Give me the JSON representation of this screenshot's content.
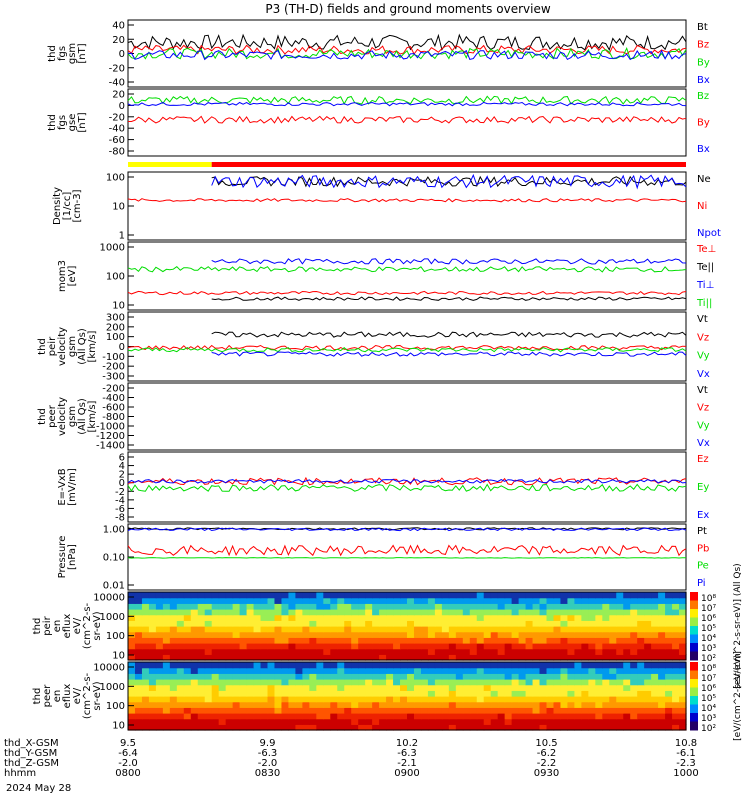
{
  "title": "P3 (TH-D) fields and ground moments overview",
  "date_text": "2024 May 28",
  "time_axis": {
    "row_labels": [
      "thd_X-GSM",
      "thd_Y-GSM",
      "thd_Z-GSM",
      "hhmm"
    ],
    "columns": [
      {
        "values": [
          "9.5",
          "-6.4",
          "-2.0",
          "0800"
        ]
      },
      {
        "values": [
          "9.9",
          "-6.3",
          "-2.0",
          "0830"
        ]
      },
      {
        "values": [
          "10.2",
          "-6.3",
          "-2.1",
          "0900"
        ]
      },
      {
        "values": [
          "10.5",
          "-6.2",
          "-2.2",
          "0930"
        ]
      },
      {
        "values": [
          "10.8",
          "-6.1",
          "-2.3",
          "1000"
        ]
      }
    ]
  },
  "colors": {
    "black": "#000000",
    "red": "#ff0000",
    "green": "#00dd00",
    "blue": "#0000ff",
    "yellow": "#ffff00"
  },
  "chart_data": [
    {
      "type": "line",
      "ylabel": [
        "thd",
        "fgs",
        "gsm",
        "[nT]"
      ],
      "yticks": [
        "40",
        "20",
        "0",
        "-20",
        "-40"
      ],
      "ylim": [
        -45,
        45
      ],
      "legend": [
        "Bt",
        "Bz",
        "By",
        "Bx"
      ],
      "series": [
        {
          "name": "Bt",
          "color": "black",
          "level": 15,
          "noise": 10
        },
        {
          "name": "Bz",
          "color": "red",
          "level": 5,
          "noise": 6
        },
        {
          "name": "By",
          "color": "green",
          "level": 0,
          "noise": 7
        },
        {
          "name": "Bx",
          "color": "blue",
          "level": -2,
          "noise": 6
        }
      ]
    },
    {
      "type": "line",
      "ylabel": [
        "thd",
        "fgs",
        "gse",
        "[nT]"
      ],
      "yticks": [
        "20",
        "0",
        "-20",
        "-40",
        "-60",
        "-80"
      ],
      "ylim": [
        -95,
        25
      ],
      "legend": [
        "Bz",
        "By",
        "Bx"
      ],
      "series": [
        {
          "name": "Bz",
          "color": "green",
          "level": 5,
          "noise": 7
        },
        {
          "name": "By",
          "color": "red",
          "level": -30,
          "noise": 6
        },
        {
          "name": "Bx",
          "color": "blue",
          "level": -2,
          "noise": 3
        }
      ]
    },
    {
      "type": "line",
      "ylabel": [
        "Density",
        "[1/cc]",
        "[cm-3]"
      ],
      "yticks": [
        "100",
        "10",
        "1"
      ],
      "ylim": [
        0.8,
        120
      ],
      "log": true,
      "legend": [
        "Ne",
        "Ni",
        "Npot"
      ],
      "series": [
        {
          "name": "Ne",
          "color": "black",
          "level": 60,
          "noise": 0.15
        },
        {
          "name": "Ni",
          "color": "red",
          "level": 15,
          "noise": 0.05
        },
        {
          "name": "Npot",
          "color": "blue",
          "level": 60,
          "noise": 0.2
        }
      ]
    },
    {
      "type": "line",
      "ylabel": [
        "mom3",
        "[eV]"
      ],
      "yticks": [
        "1000",
        "100",
        "10"
      ],
      "ylim": [
        9,
        1100
      ],
      "log": true,
      "legend": [
        "Te⊥",
        "Te||",
        "Ti⊥",
        "Ti||"
      ],
      "series": [
        {
          "name": "Te⊥",
          "color": "red",
          "level": 30,
          "noise": 0.05
        },
        {
          "name": "Te||",
          "color": "black",
          "level": 20,
          "noise": 0.05
        },
        {
          "name": "Ti⊥",
          "color": "blue",
          "level": 280,
          "noise": 0.08
        },
        {
          "name": "Ti||",
          "color": "green",
          "level": 160,
          "noise": 0.08
        }
      ]
    },
    {
      "type": "line",
      "ylabel": [
        "thd",
        "peir",
        "velocity",
        "gsm",
        "(All Qs)",
        "[km/s]"
      ],
      "yticks": [
        "300",
        "200",
        "100",
        "0",
        "-100",
        "-200",
        "-300"
      ],
      "ylim": [
        -320,
        320
      ],
      "legend": [
        "Vt",
        "Vz",
        "Vy",
        "Vx"
      ],
      "series": [
        {
          "name": "Vt",
          "color": "black",
          "level": 110,
          "noise": 25
        },
        {
          "name": "Vz",
          "color": "red",
          "level": -10,
          "noise": 20
        },
        {
          "name": "Vy",
          "color": "green",
          "level": -30,
          "noise": 20
        },
        {
          "name": "Vx",
          "color": "blue",
          "level": -70,
          "noise": 20
        }
      ]
    },
    {
      "type": "line",
      "ylabel": [
        "thd",
        "peer",
        "velocity",
        "gsm",
        "(All Qs)",
        "[km/s]"
      ],
      "yticks": [
        "-200",
        "-400",
        "-600",
        "-800",
        "-1000",
        "-1200",
        "-1400"
      ],
      "ylim": [
        -1450,
        -150
      ],
      "legend": [
        "Vt",
        "Vz",
        "Vy",
        "Vx"
      ],
      "series": []
    },
    {
      "type": "line",
      "ylabel": [
        "E=-VxB",
        "[mV/m]"
      ],
      "yticks": [
        "6",
        "4",
        "2",
        "0",
        "-2",
        "-4",
        "-6",
        "-8"
      ],
      "ylim": [
        -9,
        7
      ],
      "legend": [
        "Ez",
        "Ey",
        "Ex"
      ],
      "series": [
        {
          "name": "Ez",
          "color": "red",
          "level": 0.3,
          "noise": 0.8
        },
        {
          "name": "Ey",
          "color": "green",
          "level": -1.2,
          "noise": 0.8
        },
        {
          "name": "Ex",
          "color": "blue",
          "level": 0.3,
          "noise": 0.4
        }
      ]
    },
    {
      "type": "line",
      "ylabel": [
        "Pressure",
        "[nPa]"
      ],
      "yticks": [
        "1.00",
        "0.10",
        "0.01"
      ],
      "ylim": [
        0.003,
        1.4
      ],
      "log": true,
      "legend": [
        "Pt",
        "Pb",
        "Pe",
        "Pi"
      ],
      "series": [
        {
          "name": "Pt",
          "color": "black",
          "level": 0.9,
          "noise": 0.04
        },
        {
          "name": "Pb",
          "color": "red",
          "level": 0.12,
          "noise": 0.2
        },
        {
          "name": "Pe",
          "color": "green",
          "level": 0.06,
          "noise": 0.01
        },
        {
          "name": "Pi",
          "color": "blue",
          "level": 0.85,
          "noise": 0.05
        }
      ]
    },
    {
      "type": "heatmap",
      "ylabel": [
        "thd",
        "peir",
        "en",
        "eflux",
        "eV/",
        "(cm^2-s-",
        "sr-eV)"
      ],
      "yticks": [
        "10000",
        "1000",
        "100",
        "10"
      ],
      "ylim": [
        6,
        25000
      ],
      "log": true
    },
    {
      "type": "heatmap",
      "ylabel": [
        "thd",
        "peer",
        "en",
        "eflux",
        "eV/",
        "(cm^2-s-",
        "sr-eV)"
      ],
      "yticks": [
        "10000",
        "1000",
        "100",
        "10"
      ],
      "ylim": [
        6,
        25000
      ],
      "log": true
    }
  ],
  "colorbars": [
    {
      "ticks": [
        "10⁸",
        "10⁷",
        "10⁶",
        "10⁵",
        "10⁴",
        "10³",
        "10²"
      ],
      "label": "[eV/(cm^2-s-sr-eV)] (All Qs)"
    },
    {
      "ticks": [
        "10⁸",
        "10⁷",
        "10⁶",
        "10⁵",
        "10⁴",
        "10³",
        "10²"
      ],
      "label": "[eV/(cm^2-s-sr-eV)]"
    }
  ]
}
